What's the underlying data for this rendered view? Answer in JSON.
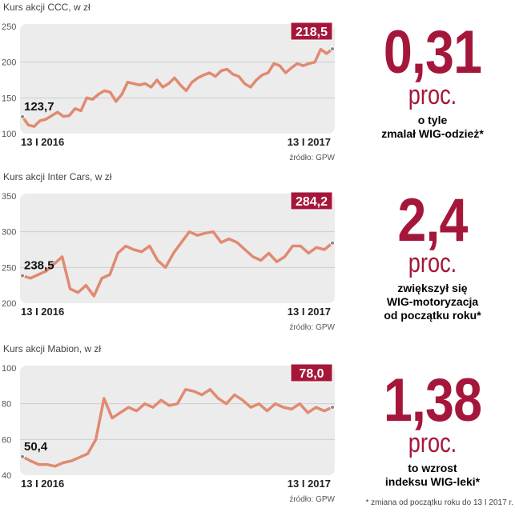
{
  "chart_data": [
    {
      "type": "line",
      "title": "Kurs akcji CCC, w zł",
      "yticks": [
        100,
        150,
        200,
        250
      ],
      "ylim": [
        100,
        250
      ],
      "xlabels": [
        "13 I 2016",
        "13 I 2017"
      ],
      "start_label": "123,7",
      "end_label": "218,5",
      "source": "źródło: GPW",
      "values": [
        123.7,
        112,
        110,
        118,
        120,
        125,
        130,
        124,
        125,
        135,
        132,
        150,
        148,
        155,
        160,
        158,
        145,
        155,
        172,
        170,
        168,
        170,
        165,
        175,
        165,
        170,
        178,
        168,
        160,
        172,
        178,
        182,
        185,
        180,
        188,
        190,
        183,
        180,
        170,
        165,
        175,
        182,
        185,
        198,
        195,
        185,
        192,
        198,
        195,
        198,
        200,
        218,
        212,
        218.5
      ]
    },
    {
      "type": "line",
      "title": "Kurs akcji Inter Cars, w zł",
      "yticks": [
        200,
        250,
        300,
        350
      ],
      "ylim": [
        200,
        350
      ],
      "xlabels": [
        "13 I 2016",
        "13 I 2017"
      ],
      "start_label": "238,5",
      "end_label": "284,2",
      "source": "źródło: GPW",
      "values": [
        238.5,
        235,
        240,
        245,
        255,
        265,
        220,
        215,
        225,
        210,
        235,
        240,
        270,
        280,
        275,
        272,
        280,
        260,
        250,
        270,
        285,
        300,
        295,
        298,
        300,
        285,
        290,
        285,
        275,
        265,
        260,
        270,
        258,
        265,
        280,
        280,
        270,
        278,
        275,
        284.2
      ]
    },
    {
      "type": "line",
      "title": "Kurs akcji Mabion, w zł",
      "yticks": [
        40,
        60,
        80,
        100
      ],
      "ylim": [
        40,
        100
      ],
      "xlabels": [
        "13 I 2016",
        "13 I 2017"
      ],
      "start_label": "50,4",
      "end_label": "78,0",
      "source": "źródło: GPW",
      "values": [
        50.4,
        48,
        46,
        46,
        45,
        47,
        48,
        50,
        52,
        60,
        83,
        72,
        75,
        78,
        76,
        80,
        78,
        82,
        79,
        80,
        88,
        87,
        85,
        88,
        83,
        80,
        85,
        82,
        78,
        80,
        76,
        80,
        78,
        77,
        80,
        75,
        78,
        76,
        78
      ]
    }
  ],
  "stats": [
    {
      "value": "0,31",
      "unit": "proc.",
      "desc": [
        "o tyle",
        "zmalał WIG-odzież*"
      ]
    },
    {
      "value": "2,4",
      "unit": "proc.",
      "desc": [
        "zwiększył się",
        "WIG-motoryzacja",
        "od początku roku*"
      ]
    },
    {
      "value": "1,38",
      "unit": "proc.",
      "desc": [
        "to wzrost",
        "indeksu WIG-leki*"
      ]
    }
  ],
  "footnote": "* zmiana od początku roku do 13 I 2017 r.",
  "colors": {
    "line": "#e08a72",
    "accent": "#a5173a",
    "plot_bg": "#ececec"
  }
}
